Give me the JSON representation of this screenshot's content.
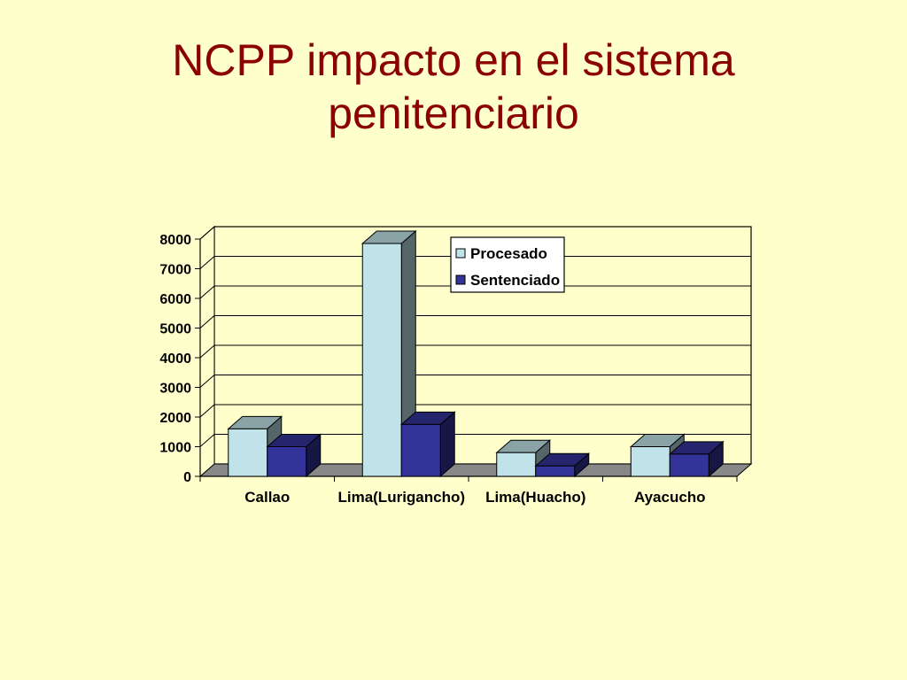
{
  "slide": {
    "title_line1": "NCPP impacto en el sistema",
    "title_line2": "penitenciario"
  },
  "chart_data": {
    "type": "bar",
    "title": "",
    "xlabel": "",
    "ylabel": "",
    "categories": [
      "Callao",
      "Lima(Lurigancho)",
      "Lima(Huacho)",
      "Ayacucho"
    ],
    "series": [
      {
        "name": "Procesado",
        "values": [
          1600,
          7850,
          800,
          1000
        ],
        "color": "#BFE3E8"
      },
      {
        "name": "Sentenciado",
        "values": [
          1000,
          1750,
          350,
          750
        ],
        "color": "#333399"
      }
    ],
    "ylim": [
      0,
      8000
    ],
    "yticks": [
      "0",
      "1000",
      "2000",
      "3000",
      "4000",
      "5000",
      "6000",
      "7000",
      "8000"
    ],
    "grid": true,
    "legend_position": "top-right",
    "style": "3d-clustered-column"
  }
}
